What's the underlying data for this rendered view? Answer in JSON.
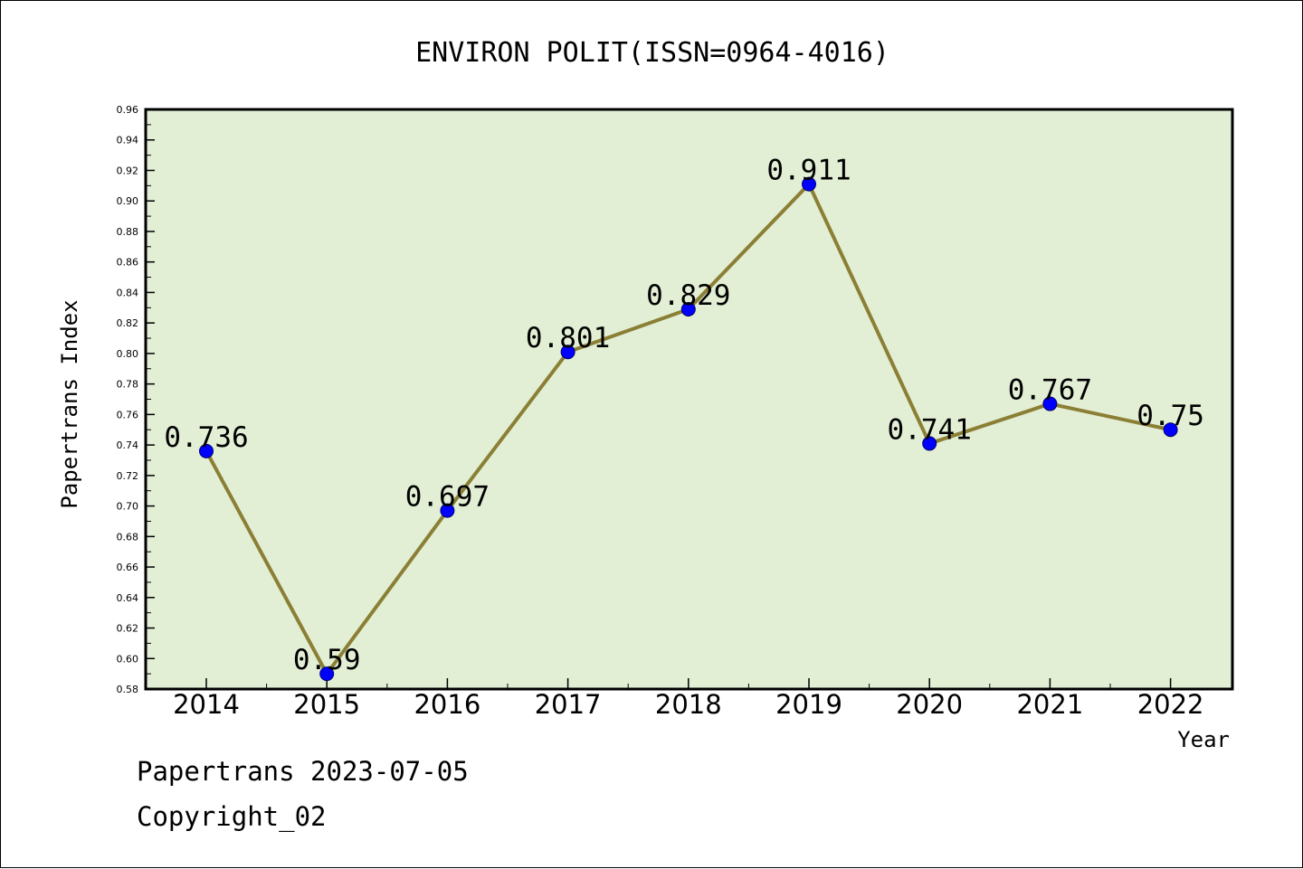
{
  "footer": {
    "date_line": "Papertrans 2023-07-05",
    "copyright_line": "Copyright_02"
  },
  "chart_data": {
    "type": "line",
    "title": "ENVIRON POLIT(ISSN=0964-4016)",
    "xlabel": "Year",
    "ylabel": "Papertrans Index",
    "categories": [
      "2014",
      "2015",
      "2016",
      "2017",
      "2018",
      "2019",
      "2020",
      "2021",
      "2022"
    ],
    "series": [
      {
        "values": [
          0.736,
          0.59,
          0.697,
          0.801,
          0.829,
          0.911,
          0.741,
          0.767,
          0.75
        ],
        "labels": [
          "0.736",
          "0.59",
          "0.697",
          "0.801",
          "0.829",
          "0.911",
          "0.741",
          "0.767",
          "0.75"
        ]
      }
    ],
    "ylim": [
      0.58,
      0.96
    ],
    "yticks": [
      "0.58",
      "0.60",
      "0.62",
      "0.64",
      "0.66",
      "0.68",
      "0.70",
      "0.72",
      "0.74",
      "0.76",
      "0.78",
      "0.80",
      "0.82",
      "0.84",
      "0.86",
      "0.88",
      "0.90",
      "0.92",
      "0.94",
      "0.96"
    ],
    "grid": false,
    "colors": {
      "plot_background": "#e2efd5",
      "line": "#8b7f35",
      "marker": "#0000ff"
    }
  }
}
